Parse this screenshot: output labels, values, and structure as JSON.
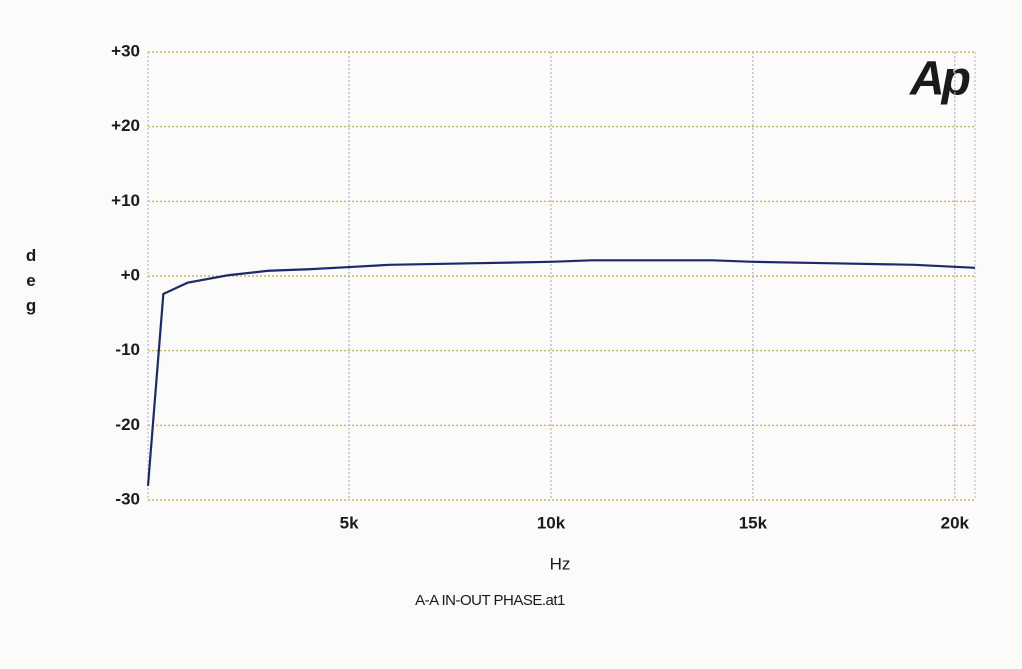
{
  "chart_data": {
    "type": "line",
    "logo": "Ap",
    "ylabel": "deg",
    "xlabel": "Hz",
    "caption": "A-A IN-OUT PHASE.at1",
    "x": [
      20,
      400,
      1000,
      2000,
      3000,
      4000,
      5000,
      6000,
      7000,
      8000,
      10000,
      11000,
      12000,
      14000,
      15000,
      17000,
      19000,
      20500
    ],
    "series": [
      {
        "color": "#1c2a6b",
        "values": [
          -28.1,
          -2.4,
          -0.9,
          0.1,
          0.7,
          0.9,
          1.2,
          1.5,
          1.6,
          1.7,
          1.9,
          2.1,
          2.1,
          2.1,
          1.9,
          1.7,
          1.5,
          1.1
        ]
      }
    ],
    "xlim": [
      20,
      20500
    ],
    "ylim": [
      -30,
      30
    ],
    "xticks": [
      {
        "value": 5000,
        "label": "5k"
      },
      {
        "value": 10000,
        "label": "10k"
      },
      {
        "value": 15000,
        "label": "15k"
      },
      {
        "value": 20000,
        "label": "20k"
      }
    ],
    "yticks": [
      {
        "value": 30,
        "label": "+30"
      },
      {
        "value": 20,
        "label": "+20"
      },
      {
        "value": 10,
        "label": "+10"
      },
      {
        "value": 0,
        "label": "+0"
      },
      -10,
      -20,
      -30
    ],
    "grid": true,
    "xgrid_color": "#b9a8d8",
    "ygrid_color": "#c9a64a"
  }
}
